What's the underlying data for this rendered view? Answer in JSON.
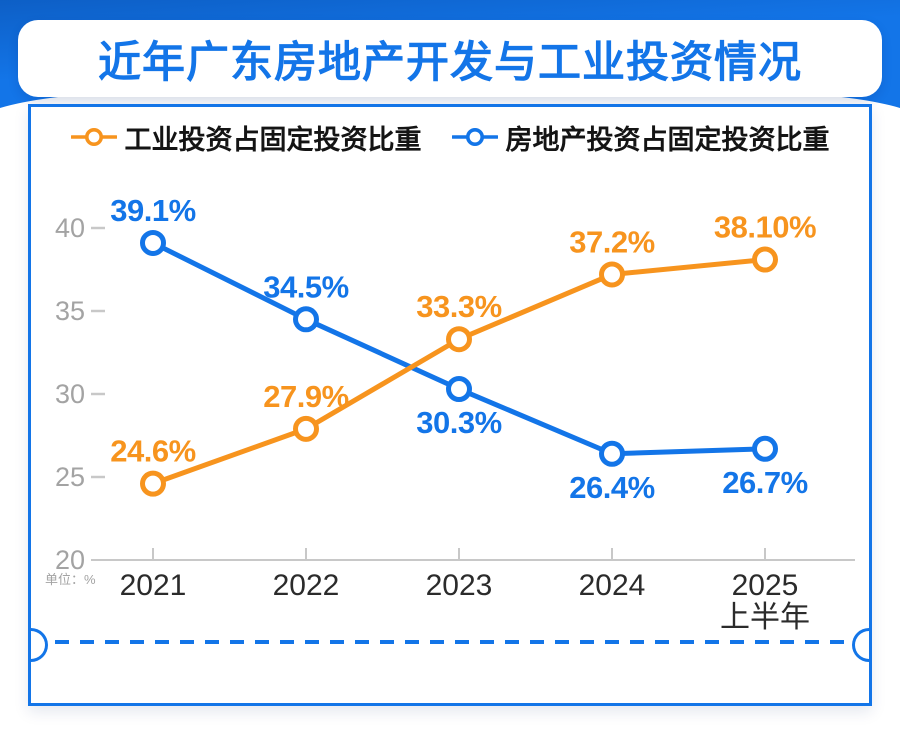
{
  "colors": {
    "blue": "#1375E8",
    "blue_dark": "#0D5FC6",
    "orange": "#F7941E",
    "axis_line": "#C8C8C8",
    "tick_text": "#A3A3A3",
    "year_text": "#2B2B2B",
    "legend_text": "#141414"
  },
  "header": {
    "title": "近年广东房地产开发与工业投资情况"
  },
  "chart_data": {
    "type": "line",
    "title": "近年广东房地产开发与工业投资情况",
    "categories": [
      "2021",
      "2022",
      "2023",
      "2024",
      "2025上半年"
    ],
    "x_tick_labels": [
      [
        "2021"
      ],
      [
        "2022"
      ],
      [
        "2023"
      ],
      [
        "2024"
      ],
      [
        "2025",
        "上半年"
      ]
    ],
    "series": [
      {
        "name": "工业投资占固定投资比重",
        "color": "#F7941E",
        "values": [
          24.6,
          27.9,
          33.3,
          37.2,
          38.1
        ],
        "labels": [
          "24.6%",
          "27.9%",
          "33.3%",
          "37.2%",
          "38.10%"
        ],
        "label_positions": [
          "above",
          "above",
          "above",
          "above",
          "above"
        ]
      },
      {
        "name": "房地产投资占固定投资比重",
        "color": "#1375E8",
        "values": [
          39.1,
          34.5,
          30.3,
          26.4,
          26.7
        ],
        "labels": [
          "39.1%",
          "34.5%",
          "30.3%",
          "26.4%",
          "26.7%"
        ],
        "label_positions": [
          "above",
          "above",
          "below",
          "below",
          "below"
        ]
      }
    ],
    "y_ticks": [
      20,
      25,
      30,
      35,
      40
    ],
    "ylim": [
      20,
      42.5
    ],
    "xlabel": "",
    "ylabel": "",
    "unit_label": "单位：%",
    "grid": false,
    "legend_position": "top"
  }
}
